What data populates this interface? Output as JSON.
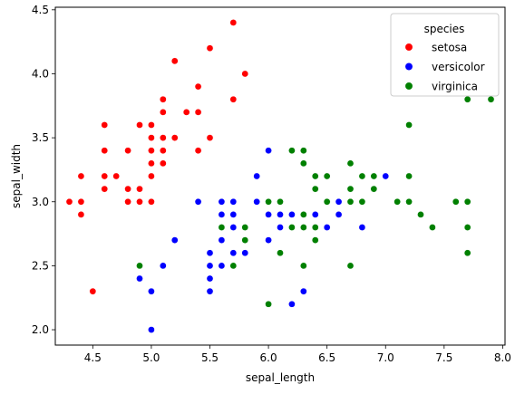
{
  "chart_data": {
    "type": "scatter",
    "xlabel": "sepal_length",
    "ylabel": "sepal_width",
    "xlim": [
      4.18,
      8.02
    ],
    "ylim": [
      1.88,
      4.52
    ],
    "xticks": [
      4.5,
      5.0,
      5.5,
      6.0,
      6.5,
      7.0,
      7.5,
      8.0
    ],
    "xtick_labels": [
      "4.5",
      "5.0",
      "5.5",
      "6.0",
      "6.5",
      "7.0",
      "7.5",
      "8.0"
    ],
    "yticks": [
      2.0,
      2.5,
      3.0,
      3.5,
      4.0,
      4.5
    ],
    "ytick_labels": [
      "2.0",
      "2.5",
      "3.0",
      "3.5",
      "4.0",
      "4.5"
    ],
    "grid": false,
    "legend": {
      "title": "species",
      "position": "top-right"
    },
    "series": [
      {
        "name": "setosa",
        "color": "#ff0000",
        "x": [
          4.3,
          4.4,
          4.4,
          4.4,
          4.5,
          4.6,
          4.6,
          4.6,
          4.6,
          4.7,
          4.8,
          4.8,
          4.8,
          4.9,
          4.9,
          4.9,
          5.0,
          5.0,
          5.0,
          5.0,
          5.0,
          5.0,
          5.1,
          5.1,
          5.1,
          5.1,
          5.1,
          5.1,
          5.1,
          5.2,
          5.2,
          5.3,
          5.4,
          5.4,
          5.4,
          5.5,
          5.5,
          5.7,
          5.7,
          5.8
        ],
        "y": [
          3.0,
          3.2,
          3.0,
          2.9,
          2.3,
          3.6,
          3.4,
          3.2,
          3.1,
          3.2,
          3.4,
          3.1,
          3.0,
          3.6,
          3.1,
          3.0,
          3.6,
          3.5,
          3.4,
          3.3,
          3.2,
          3.0,
          3.8,
          3.7,
          3.5,
          3.4,
          3.3,
          3.8,
          3.5,
          4.1,
          3.5,
          3.7,
          3.9,
          3.7,
          3.4,
          4.2,
          3.5,
          4.4,
          3.8,
          4.0
        ]
      },
      {
        "name": "versicolor",
        "color": "#0000ff",
        "x": [
          4.9,
          5.0,
          5.0,
          5.1,
          5.2,
          5.4,
          5.5,
          5.5,
          5.5,
          5.5,
          5.6,
          5.6,
          5.6,
          5.6,
          5.6,
          5.7,
          5.7,
          5.7,
          5.7,
          5.7,
          5.8,
          5.8,
          5.9,
          5.9,
          6.0,
          6.0,
          6.0,
          6.0,
          6.1,
          6.1,
          6.1,
          6.2,
          6.2,
          6.3,
          6.3,
          6.3,
          6.4,
          6.4,
          6.5,
          6.6,
          6.6,
          6.7,
          6.7,
          6.8,
          6.9,
          7.0
        ],
        "y": [
          2.4,
          2.3,
          2.0,
          2.5,
          2.7,
          3.0,
          2.6,
          2.5,
          2.4,
          2.3,
          3.0,
          2.9,
          2.8,
          2.7,
          2.5,
          3.0,
          2.9,
          2.8,
          2.8,
          2.6,
          2.7,
          2.6,
          3.2,
          3.0,
          3.4,
          2.9,
          2.7,
          2.2,
          3.0,
          2.9,
          2.8,
          2.9,
          2.2,
          3.3,
          2.9,
          2.3,
          3.2,
          2.9,
          2.8,
          3.0,
          2.9,
          3.1,
          3.0,
          2.8,
          3.1,
          3.2
        ]
      },
      {
        "name": "virginica",
        "color": "#008000",
        "x": [
          4.9,
          5.6,
          5.7,
          5.8,
          5.8,
          5.8,
          6.0,
          6.0,
          6.1,
          6.1,
          6.2,
          6.2,
          6.3,
          6.3,
          6.3,
          6.3,
          6.3,
          6.4,
          6.4,
          6.4,
          6.4,
          6.5,
          6.5,
          6.5,
          6.7,
          6.7,
          6.7,
          6.7,
          6.8,
          6.8,
          6.9,
          6.9,
          7.1,
          7.2,
          7.2,
          7.2,
          7.3,
          7.4,
          7.6,
          7.7,
          7.7,
          7.7,
          7.7,
          7.9
        ],
        "y": [
          2.5,
          2.8,
          2.5,
          2.8,
          2.7,
          2.7,
          3.0,
          2.2,
          3.0,
          2.6,
          3.4,
          2.8,
          3.4,
          3.3,
          2.9,
          2.8,
          2.5,
          3.2,
          3.1,
          2.8,
          2.7,
          3.2,
          3.0,
          3.0,
          3.3,
          3.1,
          3.0,
          2.5,
          3.2,
          3.0,
          3.2,
          3.1,
          3.0,
          3.6,
          3.2,
          3.0,
          2.9,
          2.8,
          3.0,
          3.8,
          3.0,
          2.8,
          2.6,
          3.8
        ]
      }
    ]
  }
}
